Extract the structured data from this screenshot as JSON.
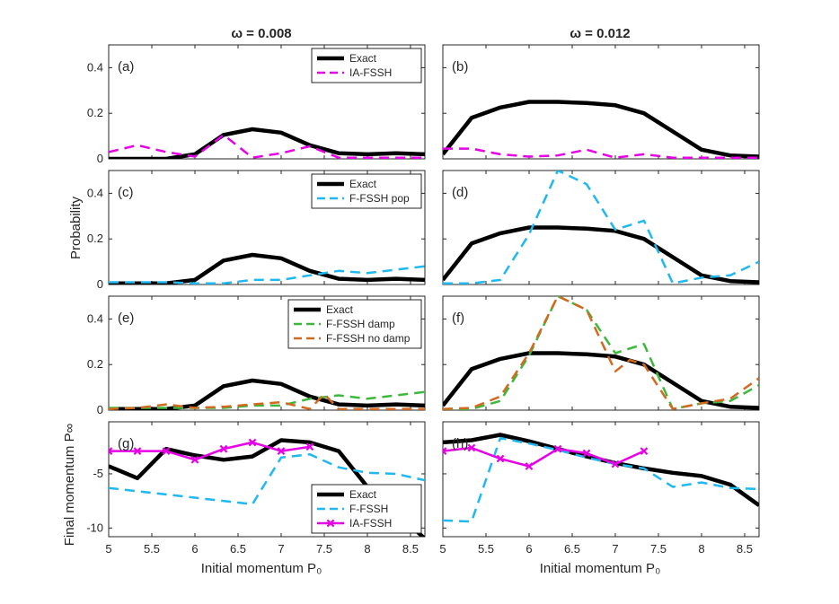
{
  "chart_data": {
    "type": "line",
    "column_titles": [
      "ω = 0.008",
      "ω = 0.012"
    ],
    "ylabel_prob": "Probability",
    "ylabel_mom": "Final momentum P∞",
    "xlabel": "Initial momentum P₀",
    "xlim": [
      5,
      8.667
    ],
    "xticks": [
      "5",
      "5.5",
      "6",
      "6.5",
      "7",
      "7.5",
      "8",
      "8.5"
    ],
    "prob_yticks": [
      "0",
      "0.2",
      "0.4"
    ],
    "mom_yticks": [
      "-10",
      "-5"
    ],
    "panels": [
      {
        "label": "(a)",
        "row": 0,
        "col": 0,
        "ylim": [
          0,
          0.5
        ],
        "legend_pos": "top-right",
        "series": [
          {
            "name": "Exact",
            "style": "exact",
            "x": [
              5,
              5.333,
              5.667,
              6,
              6.333,
              6.667,
              7,
              7.333,
              7.667,
              8,
              8.333,
              8.667
            ],
            "y": [
              0,
              0,
              0,
              0.02,
              0.105,
              0.13,
              0.115,
              0.06,
              0.025,
              0.02,
              0.025,
              0.02
            ]
          },
          {
            "name": "IA-FSSH",
            "style": "iafssh",
            "x": [
              5,
              5.333,
              5.667,
              6,
              6.333,
              6.667,
              7,
              7.333,
              7.667,
              8,
              8.333,
              8.667
            ],
            "y": [
              0.03,
              0.06,
              0.03,
              0.01,
              0.105,
              0.005,
              0.025,
              0.055,
              0.005,
              0.005,
              0.005,
              0.005
            ]
          }
        ]
      },
      {
        "label": "(b)",
        "row": 0,
        "col": 1,
        "ylim": [
          0,
          0.5
        ],
        "legend_pos": "none",
        "series": [
          {
            "name": "Exact",
            "style": "exact",
            "x": [
              5,
              5.333,
              5.667,
              6,
              6.333,
              6.667,
              7,
              7.333,
              7.667,
              8,
              8.333,
              8.667
            ],
            "y": [
              0.02,
              0.18,
              0.225,
              0.25,
              0.25,
              0.245,
              0.235,
              0.2,
              0.12,
              0.04,
              0.015,
              0.01
            ]
          },
          {
            "name": "IA-FSSH",
            "style": "iafssh",
            "x": [
              5,
              5.333,
              5.667,
              6,
              6.333,
              6.667,
              7,
              7.333,
              7.667,
              8,
              8.333,
              8.667
            ],
            "y": [
              0.045,
              0.045,
              0.02,
              0.01,
              0.015,
              0.04,
              0.005,
              0.02,
              0.005,
              0.005,
              0.005,
              0.005
            ]
          }
        ]
      },
      {
        "label": "(c)",
        "row": 1,
        "col": 0,
        "ylim": [
          0,
          0.5
        ],
        "legend_pos": "top-right",
        "series": [
          {
            "name": "Exact",
            "style": "exact",
            "x": [
              5,
              5.333,
              5.667,
              6,
              6.333,
              6.667,
              7,
              7.333,
              7.667,
              8,
              8.333,
              8.667
            ],
            "y": [
              0.005,
              0.005,
              0.005,
              0.02,
              0.105,
              0.13,
              0.115,
              0.06,
              0.025,
              0.02,
              0.025,
              0.02
            ]
          },
          {
            "name": "F-FSSH pop",
            "style": "ffssh",
            "x": [
              5,
              5.333,
              5.667,
              6,
              6.333,
              6.667,
              7,
              7.333,
              7.667,
              8,
              8.333,
              8.667
            ],
            "y": [
              0.01,
              0.01,
              0.01,
              0.005,
              0.005,
              0.02,
              0.02,
              0.04,
              0.06,
              0.05,
              0.065,
              0.08
            ]
          }
        ]
      },
      {
        "label": "(d)",
        "row": 1,
        "col": 1,
        "ylim": [
          0,
          0.5
        ],
        "legend_pos": "none",
        "series": [
          {
            "name": "Exact",
            "style": "exact",
            "x": [
              5,
              5.333,
              5.667,
              6,
              6.333,
              6.667,
              7,
              7.333,
              7.667,
              8,
              8.333,
              8.667
            ],
            "y": [
              0.02,
              0.18,
              0.225,
              0.25,
              0.25,
              0.245,
              0.235,
              0.2,
              0.12,
              0.04,
              0.015,
              0.01
            ]
          },
          {
            "name": "F-FSSH pop",
            "style": "ffssh",
            "x": [
              5,
              5.333,
              5.667,
              6,
              6.333,
              6.667,
              7,
              7.333,
              7.667,
              8,
              8.333,
              8.667
            ],
            "y": [
              0.005,
              0.005,
              0.02,
              0.22,
              0.5,
              0.44,
              0.24,
              0.28,
              0.005,
              0.03,
              0.04,
              0.1
            ]
          }
        ]
      },
      {
        "label": "(e)",
        "row": 2,
        "col": 0,
        "ylim": [
          0,
          0.5
        ],
        "legend_pos": "top-right",
        "series": [
          {
            "name": "Exact",
            "style": "exact",
            "x": [
              5,
              5.333,
              5.667,
              6,
              6.333,
              6.667,
              7,
              7.333,
              7.667,
              8,
              8.333,
              8.667
            ],
            "y": [
              0.005,
              0.005,
              0.005,
              0.02,
              0.105,
              0.13,
              0.115,
              0.06,
              0.025,
              0.02,
              0.025,
              0.02
            ]
          },
          {
            "name": "F-FSSH damp",
            "style": "damp",
            "x": [
              5,
              5.333,
              5.667,
              6,
              6.333,
              6.667,
              7,
              7.333,
              7.667,
              8,
              8.333,
              8.667
            ],
            "y": [
              0.01,
              0.01,
              0.01,
              0.01,
              0.01,
              0.02,
              0.02,
              0.05,
              0.065,
              0.05,
              0.065,
              0.08
            ]
          },
          {
            "name": "F-FSSH no damp",
            "style": "nodamp",
            "x": [
              5,
              5.333,
              5.667,
              6,
              6.333,
              6.667,
              7,
              7.333,
              7.5,
              7.667,
              8,
              8.333,
              8.667
            ],
            "y": [
              0.005,
              0.01,
              0.025,
              0.01,
              0.015,
              0.025,
              0.035,
              0.005,
              0.07,
              0.005,
              0.005,
              0.005,
              0.005
            ]
          }
        ]
      },
      {
        "label": "(f)",
        "row": 2,
        "col": 1,
        "ylim": [
          0,
          0.5
        ],
        "legend_pos": "none",
        "series": [
          {
            "name": "Exact",
            "style": "exact",
            "x": [
              5,
              5.333,
              5.667,
              6,
              6.333,
              6.667,
              7,
              7.333,
              7.667,
              8,
              8.333,
              8.667
            ],
            "y": [
              0.02,
              0.18,
              0.225,
              0.25,
              0.25,
              0.245,
              0.235,
              0.2,
              0.12,
              0.04,
              0.015,
              0.01
            ]
          },
          {
            "name": "F-FSSH damp",
            "style": "damp",
            "x": [
              5,
              5.333,
              5.667,
              6,
              6.333,
              6.667,
              7,
              7.333,
              7.667,
              8,
              8.333,
              8.667
            ],
            "y": [
              0.005,
              0.005,
              0.04,
              0.24,
              0.5,
              0.44,
              0.25,
              0.29,
              0.005,
              0.03,
              0.04,
              0.11
            ]
          },
          {
            "name": "F-FSSH no damp",
            "style": "nodamp",
            "x": [
              5,
              5.333,
              5.667,
              6,
              6.333,
              6.667,
              7,
              7.167,
              7.333,
              7.667,
              8,
              8.333,
              8.667
            ],
            "y": [
              0.005,
              0.01,
              0.06,
              0.25,
              0.5,
              0.44,
              0.17,
              0.22,
              0.2,
              0.005,
              0.03,
              0.05,
              0.14
            ]
          }
        ]
      },
      {
        "label": "(g)",
        "row": 3,
        "col": 0,
        "ylim": [
          -10.8,
          -0.2
        ],
        "legend_pos": "bottom-right",
        "series": [
          {
            "name": "Exact",
            "style": "exact",
            "x": [
              5,
              5.333,
              5.667,
              6,
              6.333,
              6.667,
              7,
              7.333,
              7.667,
              8,
              8.333,
              8.667
            ],
            "y": [
              -4.3,
              -5.4,
              -2.7,
              -3.3,
              -3.7,
              -3.4,
              -1.9,
              -2.1,
              -2.9,
              -6.2,
              -8.5,
              -11
            ]
          },
          {
            "name": "F-FSSH",
            "style": "ffssh",
            "x": [
              5,
              6.667,
              7,
              7.333,
              7.667,
              8,
              8.333,
              8.667
            ],
            "y": [
              -6.3,
              -7.8,
              -3.5,
              -3.2,
              -4.4,
              -4.9,
              -5.0,
              -5.6
            ]
          },
          {
            "name": "IA-FSSH",
            "style": "iamark",
            "x": [
              5,
              5.333,
              5.667,
              6,
              6.333,
              6.667,
              7,
              7.333
            ],
            "y": [
              -2.9,
              -2.9,
              -2.9,
              -3.7,
              -2.7,
              -2.1,
              -2.9,
              -2.5
            ]
          }
        ]
      },
      {
        "label": "(h)",
        "row": 3,
        "col": 1,
        "ylim": [
          -10.8,
          -0.2
        ],
        "legend_pos": "none",
        "series": [
          {
            "name": "Exact",
            "style": "exact",
            "x": [
              5,
              5.333,
              5.667,
              6,
              6.333,
              6.667,
              7,
              7.333,
              7.667,
              8,
              8.333,
              8.667
            ],
            "y": [
              -2.1,
              -1.9,
              -1.4,
              -2.0,
              -2.7,
              -3.4,
              -4.0,
              -4.5,
              -4.9,
              -5.2,
              -6.0,
              -7.9
            ]
          },
          {
            "name": "F-FSSH",
            "style": "ffssh",
            "x": [
              5,
              5.333,
              5.667,
              6,
              6.333,
              6.667,
              7,
              7.333,
              7.667,
              8,
              8.333,
              8.667
            ],
            "y": [
              -9.3,
              -9.4,
              -1.7,
              -2.2,
              -2.8,
              -3.5,
              -4.1,
              -4.5,
              -6.2,
              -5.8,
              -6.3,
              -6.4
            ]
          },
          {
            "name": "IA-FSSH",
            "style": "iamark",
            "x": [
              5,
              5.333,
              5.667,
              6,
              6.333,
              6.667,
              7,
              7.333
            ],
            "y": [
              -2.9,
              -2.6,
              -3.6,
              -4.3,
              -2.7,
              -3.1,
              -4.1,
              -2.9
            ]
          }
        ]
      }
    ]
  }
}
